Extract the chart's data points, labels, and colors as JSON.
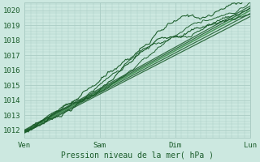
{
  "xlabel": "Pression niveau de la mer( hPa )",
  "background_color": "#cce8e0",
  "grid_color": "#aaccc4",
  "text_color": "#1a5c2a",
  "line_color_dark": "#1a5c2a",
  "line_color_mid": "#3a8c4a",
  "ylim": [
    1011.5,
    1020.5
  ],
  "xlim": [
    0,
    72
  ],
  "yticks": [
    1012,
    1013,
    1014,
    1015,
    1016,
    1017,
    1018,
    1019,
    1020
  ],
  "xtick_positions": [
    0,
    24,
    48,
    72
  ],
  "xtick_labels": [
    "Ven",
    "Sam",
    "Dim",
    "Lun"
  ],
  "num_points": 220,
  "seed": 7
}
